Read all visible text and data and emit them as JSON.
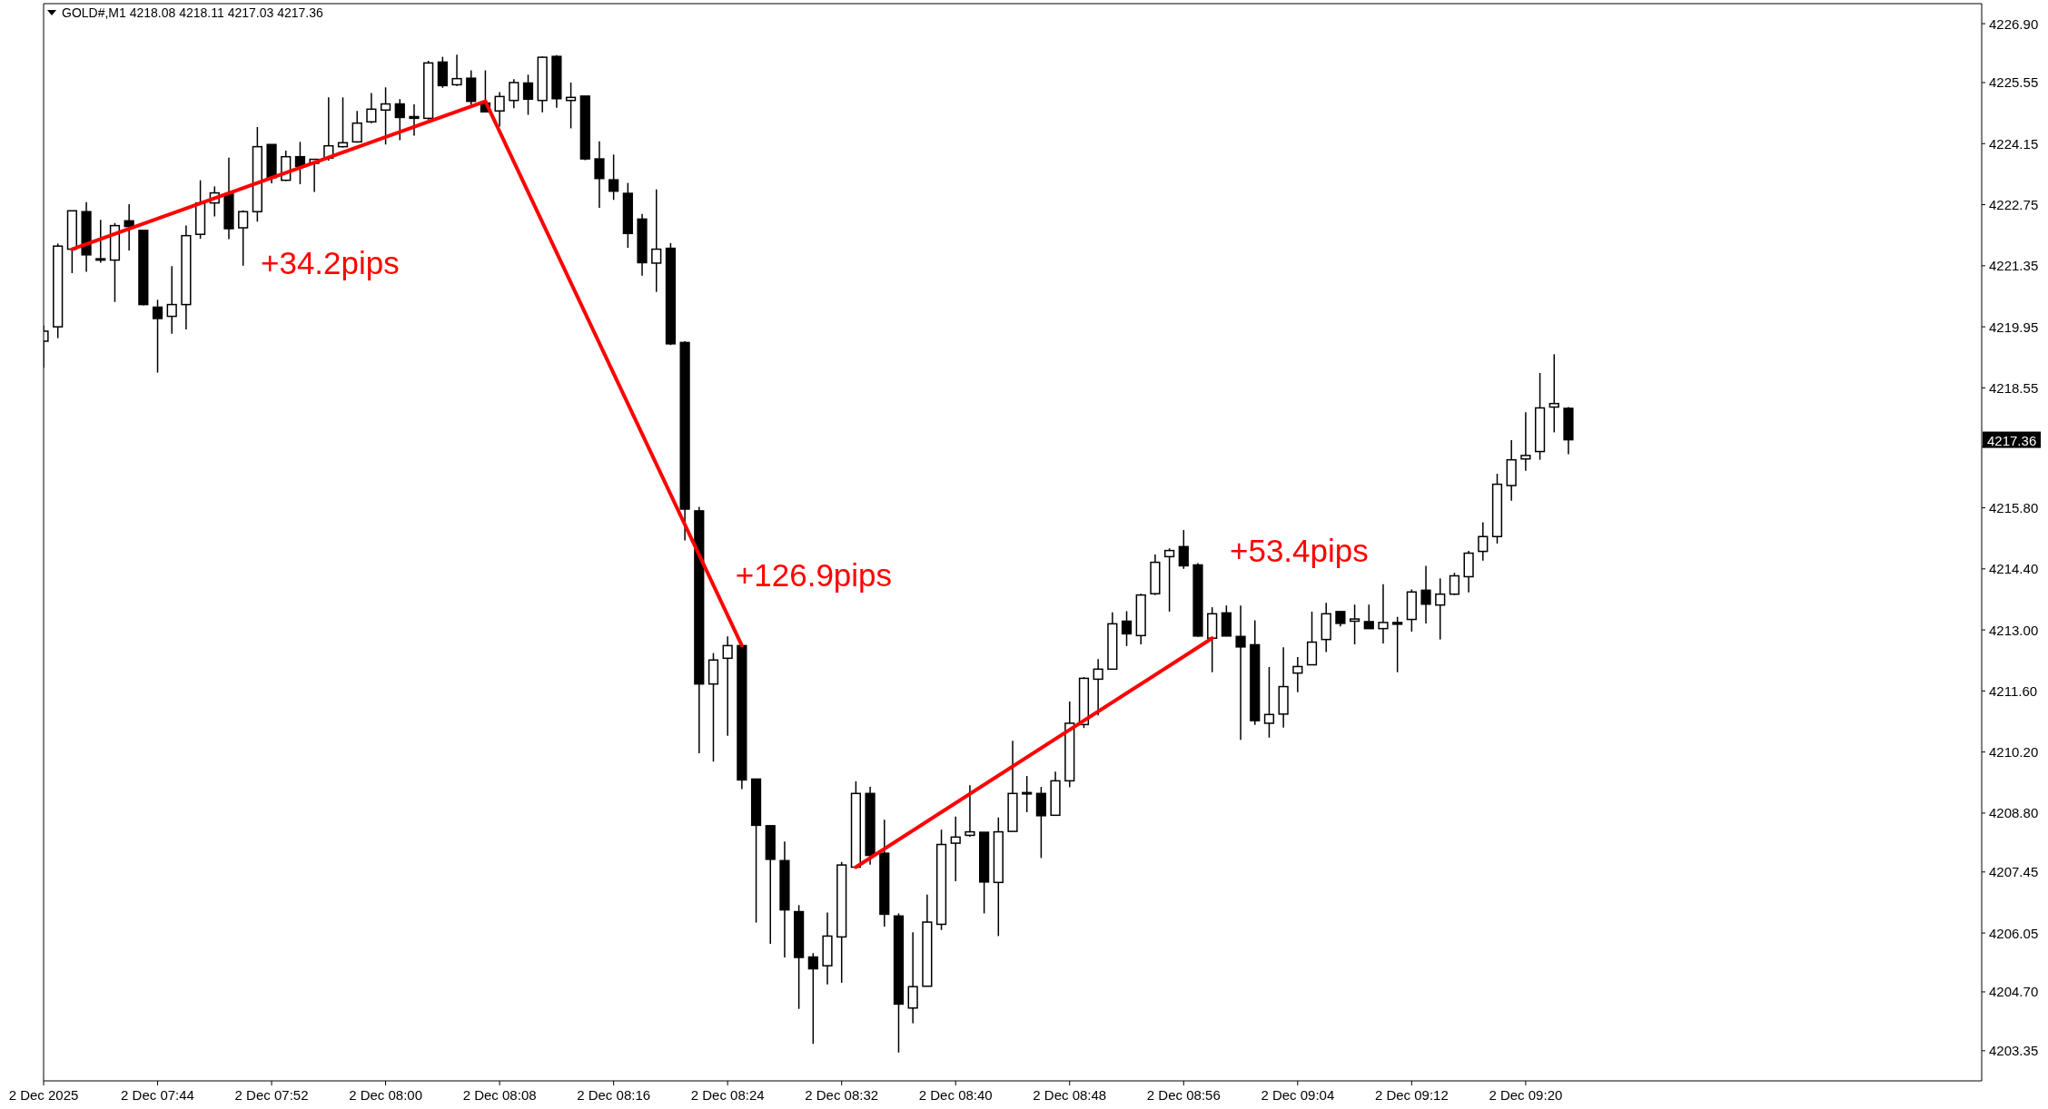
{
  "chart_data": {
    "type": "candlestick",
    "title": "GOLD#,M1 4218.08 4218.11 4217.03 4217.36",
    "color": "#000000",
    "x": [
      "2025-12-02T07:36",
      "2025-12-02T07:37",
      "2025-12-02T07:38",
      "2025-12-02T07:39",
      "2025-12-02T07:40",
      "2025-12-02T07:41",
      "2025-12-02T07:42",
      "2025-12-02T07:43",
      "2025-12-02T07:44",
      "2025-12-02T07:45",
      "2025-12-02T07:46",
      "2025-12-02T07:47",
      "2025-12-02T07:48",
      "2025-12-02T07:49",
      "2025-12-02T07:50",
      "2025-12-02T07:51",
      "2025-12-02T07:52",
      "2025-12-02T07:53",
      "2025-12-02T07:54",
      "2025-12-02T07:55",
      "2025-12-02T07:56",
      "2025-12-02T07:57",
      "2025-12-02T07:58",
      "2025-12-02T07:59",
      "2025-12-02T08:00",
      "2025-12-02T08:01",
      "2025-12-02T08:02",
      "2025-12-02T08:03",
      "2025-12-02T08:04",
      "2025-12-02T08:05",
      "2025-12-02T08:06",
      "2025-12-02T08:07",
      "2025-12-02T08:08",
      "2025-12-02T08:09",
      "2025-12-02T08:10",
      "2025-12-02T08:11",
      "2025-12-02T08:12",
      "2025-12-02T08:13",
      "2025-12-02T08:14",
      "2025-12-02T08:15",
      "2025-12-02T08:16",
      "2025-12-02T08:17",
      "2025-12-02T08:18",
      "2025-12-02T08:19",
      "2025-12-02T08:20",
      "2025-12-02T08:21",
      "2025-12-02T08:22",
      "2025-12-02T08:23",
      "2025-12-02T08:24",
      "2025-12-02T08:25",
      "2025-12-02T08:26",
      "2025-12-02T08:27",
      "2025-12-02T08:28",
      "2025-12-02T08:29",
      "2025-12-02T08:30",
      "2025-12-02T08:31",
      "2025-12-02T08:32",
      "2025-12-02T08:33",
      "2025-12-02T08:34",
      "2025-12-02T08:35",
      "2025-12-02T08:36",
      "2025-12-02T08:37",
      "2025-12-02T08:38",
      "2025-12-02T08:39",
      "2025-12-02T08:40",
      "2025-12-02T08:41",
      "2025-12-02T08:42",
      "2025-12-02T08:43",
      "2025-12-02T08:44",
      "2025-12-02T08:45",
      "2025-12-02T08:46",
      "2025-12-02T08:47",
      "2025-12-02T08:48",
      "2025-12-02T08:49",
      "2025-12-02T08:50",
      "2025-12-02T08:51",
      "2025-12-02T08:52",
      "2025-12-02T08:53",
      "2025-12-02T08:54",
      "2025-12-02T08:55",
      "2025-12-02T08:56",
      "2025-12-02T08:57",
      "2025-12-02T08:58",
      "2025-12-02T08:59",
      "2025-12-02T09:00",
      "2025-12-02T09:01",
      "2025-12-02T09:02",
      "2025-12-02T09:03",
      "2025-12-02T09:04",
      "2025-12-02T09:05",
      "2025-12-02T09:06",
      "2025-12-02T09:07",
      "2025-12-02T09:08",
      "2025-12-02T09:09",
      "2025-12-02T09:10",
      "2025-12-02T09:11",
      "2025-12-02T09:12",
      "2025-12-02T09:13",
      "2025-12-02T09:14",
      "2025-12-02T09:15",
      "2025-12-02T09:16",
      "2025-12-02T09:17",
      "2025-12-02T09:18",
      "2025-12-02T09:19",
      "2025-12-02T09:20",
      "2025-12-02T09:21",
      "2025-12-02T09:22",
      "2025-12-02T09:23"
    ],
    "ohlc": [
      [
        4219.62,
        4219.98,
        4219.01,
        4219.85
      ],
      [
        4219.95,
        4221.86,
        4219.69,
        4221.8
      ],
      [
        4221.73,
        4222.61,
        4221.18,
        4222.61
      ],
      [
        4222.59,
        4222.81,
        4221.21,
        4221.6
      ],
      [
        4221.51,
        4222.4,
        4221.42,
        4221.48
      ],
      [
        4221.48,
        4222.33,
        4220.52,
        4222.27
      ],
      [
        4222.38,
        4222.76,
        4221.7,
        4222.25
      ],
      [
        4222.16,
        4222.16,
        4220.44,
        4220.46
      ],
      [
        4220.4,
        4220.57,
        4218.9,
        4220.14
      ],
      [
        4220.19,
        4221.34,
        4219.79,
        4220.46
      ],
      [
        4220.46,
        4222.27,
        4219.89,
        4222.04
      ],
      [
        4222.07,
        4223.31,
        4221.97,
        4222.79
      ],
      [
        4222.79,
        4223.17,
        4222.48,
        4223.02
      ],
      [
        4222.99,
        4223.83,
        4221.96,
        4222.2
      ],
      [
        4222.22,
        4222.62,
        4221.35,
        4222.59
      ],
      [
        4222.59,
        4224.53,
        4222.36,
        4224.08
      ],
      [
        4224.13,
        4224.13,
        4223.24,
        4223.37
      ],
      [
        4223.31,
        4223.99,
        4223.29,
        4223.85
      ],
      [
        4223.85,
        4224.19,
        4223.22,
        4223.63
      ],
      [
        4223.7,
        4223.79,
        4223.04,
        4223.79
      ],
      [
        4223.82,
        4225.21,
        4223.76,
        4224.1
      ],
      [
        4224.08,
        4225.21,
        4224.06,
        4224.17
      ],
      [
        4224.19,
        4224.9,
        4224.17,
        4224.62
      ],
      [
        4224.65,
        4225.31,
        4224.62,
        4224.94
      ],
      [
        4224.92,
        4225.44,
        4224.13,
        4225.06
      ],
      [
        4225.06,
        4225.17,
        4224.23,
        4224.75
      ],
      [
        4224.77,
        4225.05,
        4224.33,
        4224.73
      ],
      [
        4224.73,
        4226.05,
        4224.7,
        4226.0
      ],
      [
        4226.02,
        4226.14,
        4225.43,
        4225.48
      ],
      [
        4225.5,
        4226.19,
        4225.47,
        4225.64
      ],
      [
        4225.65,
        4225.83,
        4225.04,
        4225.12
      ],
      [
        4225.08,
        4225.83,
        4224.87,
        4224.88
      ],
      [
        4224.9,
        4225.33,
        4224.54,
        4225.23
      ],
      [
        4225.14,
        4225.63,
        4224.96,
        4225.55
      ],
      [
        4225.54,
        4225.73,
        4224.81,
        4225.17
      ],
      [
        4225.14,
        4226.15,
        4224.87,
        4226.13
      ],
      [
        4226.15,
        4226.18,
        4224.97,
        4225.18
      ],
      [
        4225.14,
        4225.55,
        4224.5,
        4225.21
      ],
      [
        4225.24,
        4225.24,
        4223.77,
        4223.8
      ],
      [
        4223.8,
        4224.2,
        4222.68,
        4223.35
      ],
      [
        4223.32,
        4223.9,
        4222.86,
        4223.06
      ],
      [
        4223.01,
        4223.25,
        4221.76,
        4222.09
      ],
      [
        4222.42,
        4222.54,
        4221.12,
        4221.42
      ],
      [
        4221.41,
        4223.1,
        4220.75,
        4221.73
      ],
      [
        4221.75,
        4221.87,
        4219.53,
        4219.56
      ],
      [
        4219.59,
        4219.62,
        4215.05,
        4215.77
      ],
      [
        4215.73,
        4215.82,
        4210.17,
        4211.76
      ],
      [
        4211.76,
        4212.47,
        4209.98,
        4212.31
      ],
      [
        4212.35,
        4212.85,
        4210.57,
        4212.64
      ],
      [
        4212.64,
        4212.64,
        4209.35,
        4209.56
      ],
      [
        4209.58,
        4209.58,
        4206.29,
        4208.52
      ],
      [
        4208.51,
        4208.52,
        4205.8,
        4207.74
      ],
      [
        4207.71,
        4208.15,
        4205.49,
        4206.58
      ],
      [
        4206.54,
        4206.69,
        4204.31,
        4205.49
      ],
      [
        4205.5,
        4205.59,
        4203.51,
        4205.23
      ],
      [
        4205.3,
        4206.52,
        4204.87,
        4205.98
      ],
      [
        4205.96,
        4207.68,
        4204.91,
        4207.61
      ],
      [
        4207.56,
        4209.53,
        4207.56,
        4209.25
      ],
      [
        4209.25,
        4209.4,
        4207.62,
        4207.83
      ],
      [
        4207.88,
        4208.65,
        4206.2,
        4206.48
      ],
      [
        4206.44,
        4206.5,
        4203.31,
        4204.42
      ],
      [
        4204.33,
        4206.07,
        4203.98,
        4204.82
      ],
      [
        4204.83,
        4206.93,
        4204.83,
        4206.3
      ],
      [
        4206.25,
        4208.42,
        4206.12,
        4208.08
      ],
      [
        4208.11,
        4208.72,
        4207.24,
        4208.25
      ],
      [
        4208.29,
        4209.44,
        4208.26,
        4208.37
      ],
      [
        4208.36,
        4208.36,
        4206.5,
        4207.22
      ],
      [
        4207.21,
        4208.7,
        4205.98,
        4208.37
      ],
      [
        4208.38,
        4210.46,
        4208.38,
        4209.25
      ],
      [
        4209.24,
        4209.65,
        4208.82,
        4209.27
      ],
      [
        4209.25,
        4209.4,
        4207.77,
        4208.74
      ],
      [
        4208.75,
        4209.75,
        4208.75,
        4209.54
      ],
      [
        4209.54,
        4211.36,
        4209.39,
        4210.86
      ],
      [
        4210.83,
        4211.92,
        4210.75,
        4211.89
      ],
      [
        4211.87,
        4212.33,
        4211.04,
        4212.1
      ],
      [
        4212.1,
        4213.4,
        4212.1,
        4213.14
      ],
      [
        4213.2,
        4213.43,
        4212.63,
        4212.91
      ],
      [
        4212.87,
        4213.83,
        4212.67,
        4213.8
      ],
      [
        4213.83,
        4214.73,
        4213.8,
        4214.55
      ],
      [
        4214.68,
        4214.87,
        4213.42,
        4214.82
      ],
      [
        4214.91,
        4215.29,
        4214.4,
        4214.47
      ],
      [
        4214.49,
        4214.53,
        4212.84,
        4212.86
      ],
      [
        4212.81,
        4213.52,
        4212.03,
        4213.37
      ],
      [
        4213.39,
        4213.56,
        4212.86,
        4212.86
      ],
      [
        4212.85,
        4213.56,
        4210.48,
        4212.61
      ],
      [
        4212.66,
        4213.22,
        4210.82,
        4210.92
      ],
      [
        4210.86,
        4212.15,
        4210.53,
        4211.06
      ],
      [
        4211.07,
        4212.6,
        4210.76,
        4211.7
      ],
      [
        4212.01,
        4212.38,
        4211.57,
        4212.16
      ],
      [
        4212.2,
        4213.42,
        4212.2,
        4212.72
      ],
      [
        4212.78,
        4213.62,
        4212.49,
        4213.37
      ],
      [
        4213.42,
        4213.42,
        4213.08,
        4213.15
      ],
      [
        4213.2,
        4213.58,
        4212.67,
        4213.25
      ],
      [
        4213.19,
        4213.58,
        4213.03,
        4213.03
      ],
      [
        4213.03,
        4214.05,
        4212.69,
        4213.17
      ],
      [
        4213.17,
        4213.3,
        4212.03,
        4213.13
      ],
      [
        4213.24,
        4213.93,
        4212.96,
        4213.87
      ],
      [
        4213.91,
        4214.47,
        4213.15,
        4213.59
      ],
      [
        4213.57,
        4214.18,
        4212.78,
        4213.82
      ],
      [
        4213.82,
        4214.31,
        4213.8,
        4214.24
      ],
      [
        4214.22,
        4214.81,
        4213.86,
        4214.76
      ],
      [
        4214.8,
        4215.47,
        4214.59,
        4215.14
      ],
      [
        4215.14,
        4216.58,
        4214.98,
        4216.34
      ],
      [
        4216.31,
        4217.35,
        4215.96,
        4216.9
      ],
      [
        4216.92,
        4217.99,
        4216.65,
        4217.0
      ],
      [
        4217.09,
        4218.89,
        4216.9,
        4218.09
      ],
      [
        4218.11,
        4219.32,
        4217.53,
        4218.19
      ],
      [
        4218.08,
        4218.11,
        4217.03,
        4217.36
      ]
    ],
    "series": [
      {
        "type": "line",
        "color": "#ff0000",
        "x": [
          "2025-12-02T07:38",
          "2025-12-02T08:07"
        ],
        "values": [
          4221.73,
          4225.12
        ]
      },
      {
        "type": "line",
        "color": "#ff0000",
        "x": [
          "2025-12-02T08:07",
          "2025-12-02T08:25"
        ],
        "values": [
          4225.12,
          4212.64
        ]
      },
      {
        "type": "line",
        "color": "#ff0000",
        "x": [
          "2025-12-02T08:33",
          "2025-12-02T08:58"
        ],
        "values": [
          4207.56,
          4212.81
        ]
      }
    ],
    "xlim": [
      "2025-12-02T07:36",
      "2025-12-02T09:52"
    ],
    "xticks": [
      {
        "value": "2025-12-02T07:36",
        "label": "2 Dec 2025"
      },
      {
        "value": "2025-12-02T07:44",
        "label": "2 Dec 07:44"
      },
      {
        "value": "2025-12-02T07:52",
        "label": "2 Dec 07:52"
      },
      {
        "value": "2025-12-02T08:00",
        "label": "2 Dec 08:00"
      },
      {
        "value": "2025-12-02T08:08",
        "label": "2 Dec 08:08"
      },
      {
        "value": "2025-12-02T08:16",
        "label": "2 Dec 08:16"
      },
      {
        "value": "2025-12-02T08:24",
        "label": "2 Dec 08:24"
      },
      {
        "value": "2025-12-02T08:32",
        "label": "2 Dec 08:32"
      },
      {
        "value": "2025-12-02T08:40",
        "label": "2 Dec 08:40"
      },
      {
        "value": "2025-12-02T08:48",
        "label": "2 Dec 08:48"
      },
      {
        "value": "2025-12-02T08:56",
        "label": "2 Dec 08:56"
      },
      {
        "value": "2025-12-02T09:04",
        "label": "2 Dec 09:04"
      },
      {
        "value": "2025-12-02T09:12",
        "label": "2 Dec 09:12"
      },
      {
        "value": "2025-12-02T09:20",
        "label": "2 Dec 09:20"
      }
    ],
    "ylim": [
      4202.66,
      4227.36
    ],
    "yticks": [
      {
        "value": 4226.9,
        "label": "4226.90"
      },
      4225.55,
      4224.15,
      4222.75,
      4221.35,
      4219.95,
      4218.55,
      {
        "value": 4217.2,
        "label": null
      },
      {
        "value": 4215.8,
        "label": "4215.80"
      },
      {
        "value": 4214.4,
        "label": "4214.40"
      },
      {
        "value": 4213,
        "label": "4213.00"
      },
      {
        "value": 4211.6,
        "label": "4211.60"
      },
      {
        "value": 4210.2,
        "label": "4210.20"
      },
      {
        "value": 4208.8,
        "label": "4208.80"
      },
      4207.45,
      4206.05,
      {
        "value": 4204.7,
        "label": "4204.70"
      },
      4203.35
    ],
    "annotations": [
      "+34.2pips",
      "+126.9pips",
      "+53.4pips",
      "4217.36"
    ]
  }
}
